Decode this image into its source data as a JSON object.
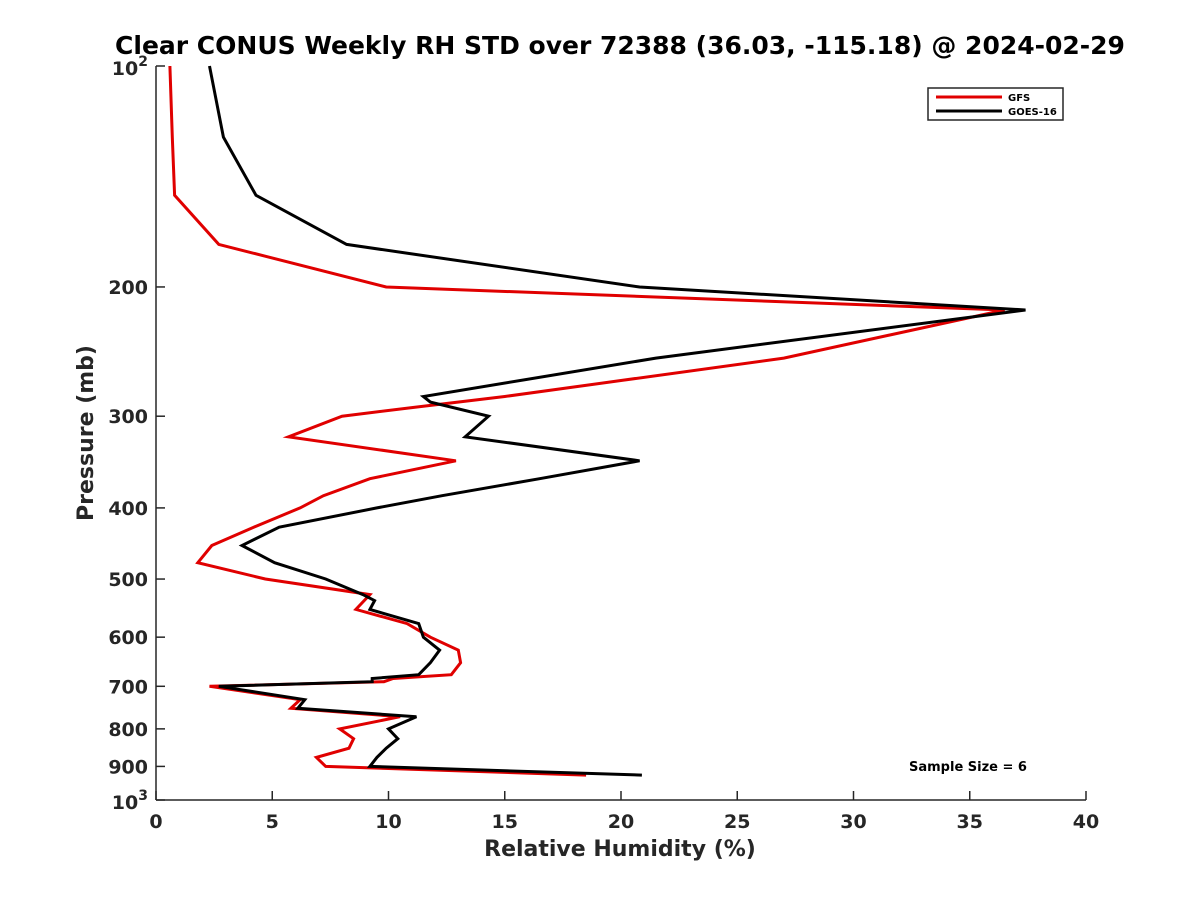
{
  "chart_data": {
    "type": "line",
    "title": "Clear CONUS Weekly RH STD over 72388 (36.03, -115.18) @ 2024-02-29",
    "xlabel": "Relative Humidity (%)",
    "ylabel": "Pressure (mb)",
    "xlim": [
      0,
      40
    ],
    "ylim": [
      100,
      1000
    ],
    "y_scale": "log",
    "y_reversed": true,
    "grid": false,
    "legend_position": "top-right",
    "x_ticks": [
      "0",
      "5",
      "10",
      "15",
      "20",
      "25",
      "30",
      "35",
      "40"
    ],
    "y_ticks": [
      {
        "value": 100,
        "base": "10",
        "exp": "2"
      },
      {
        "value": 200,
        "label": "200"
      },
      {
        "value": 300,
        "label": "300"
      },
      {
        "value": 400,
        "label": "400"
      },
      {
        "value": 500,
        "label": "500"
      },
      {
        "value": 600,
        "label": "600"
      },
      {
        "value": 700,
        "label": "700"
      },
      {
        "value": 800,
        "label": "800"
      },
      {
        "value": 900,
        "label": "900"
      },
      {
        "value": 1000,
        "base": "10",
        "exp": "3"
      }
    ],
    "annotation": "Sample Size = 6",
    "series": [
      {
        "name": "GFS",
        "color": "#e00000",
        "points": [
          [
            0.6,
            100
          ],
          [
            0.7,
            125
          ],
          [
            0.8,
            150
          ],
          [
            2.7,
            175
          ],
          [
            9.9,
            200
          ],
          [
            36.5,
            215
          ],
          [
            27.0,
            250
          ],
          [
            15.0,
            282
          ],
          [
            11.0,
            292
          ],
          [
            8.0,
            300
          ],
          [
            5.7,
            320
          ],
          [
            12.9,
            345
          ],
          [
            9.2,
            365
          ],
          [
            7.2,
            385
          ],
          [
            6.2,
            400
          ],
          [
            4.2,
            425
          ],
          [
            2.4,
            450
          ],
          [
            1.8,
            475
          ],
          [
            4.7,
            500
          ],
          [
            9.2,
            525
          ],
          [
            8.6,
            550
          ],
          [
            10.8,
            575
          ],
          [
            11.8,
            600
          ],
          [
            13.0,
            625
          ],
          [
            13.1,
            650
          ],
          [
            12.7,
            675
          ],
          [
            10.2,
            683
          ],
          [
            9.8,
            690
          ],
          [
            2.3,
            700
          ],
          [
            6.2,
            730
          ],
          [
            5.8,
            750
          ],
          [
            10.5,
            770
          ],
          [
            7.9,
            800
          ],
          [
            8.5,
            825
          ],
          [
            8.3,
            850
          ],
          [
            6.9,
            875
          ],
          [
            7.3,
            900
          ],
          [
            18.5,
            925
          ]
        ]
      },
      {
        "name": "GOES-16",
        "color": "#000000",
        "points": [
          [
            2.3,
            100
          ],
          [
            2.9,
            125
          ],
          [
            4.3,
            150
          ],
          [
            8.2,
            175
          ],
          [
            20.8,
            200
          ],
          [
            37.4,
            215
          ],
          [
            21.5,
            250
          ],
          [
            11.5,
            282
          ],
          [
            11.8,
            287
          ],
          [
            14.3,
            300
          ],
          [
            13.3,
            320
          ],
          [
            20.8,
            345
          ],
          [
            16.5,
            365
          ],
          [
            12.3,
            385
          ],
          [
            9.5,
            400
          ],
          [
            5.3,
            425
          ],
          [
            3.7,
            450
          ],
          [
            5.1,
            475
          ],
          [
            7.3,
            500
          ],
          [
            8.9,
            525
          ],
          [
            9.4,
            535
          ],
          [
            9.2,
            550
          ],
          [
            11.3,
            575
          ],
          [
            11.5,
            600
          ],
          [
            12.2,
            625
          ],
          [
            11.8,
            650
          ],
          [
            11.3,
            675
          ],
          [
            9.3,
            683
          ],
          [
            9.3,
            690
          ],
          [
            2.7,
            700
          ],
          [
            6.4,
            730
          ],
          [
            6.1,
            750
          ],
          [
            11.2,
            770
          ],
          [
            10.0,
            800
          ],
          [
            10.4,
            825
          ],
          [
            9.9,
            850
          ],
          [
            9.5,
            875
          ],
          [
            9.2,
            900
          ],
          [
            20.9,
            925
          ]
        ]
      }
    ]
  }
}
